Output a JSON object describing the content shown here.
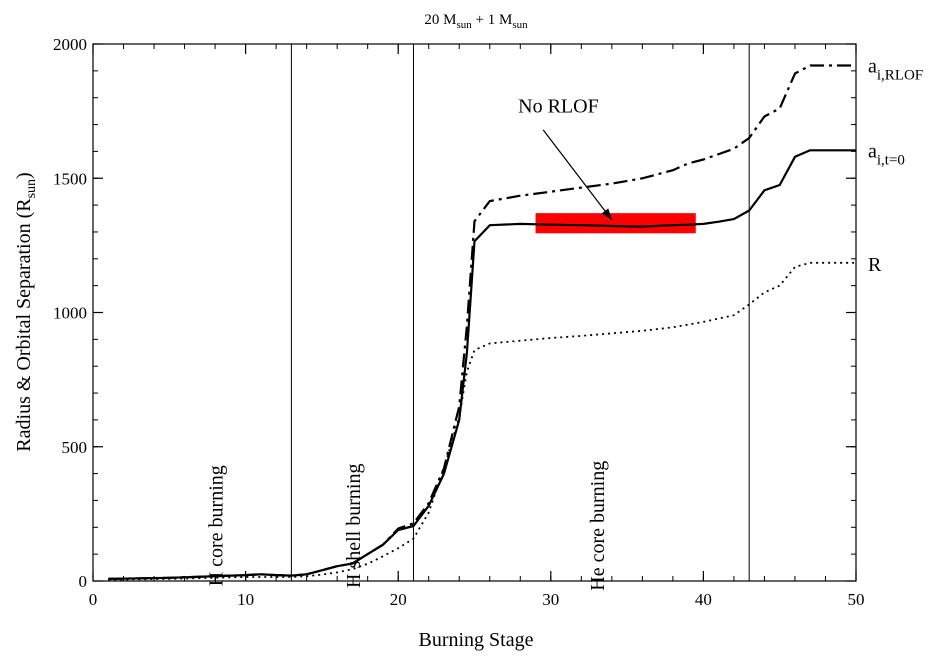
{
  "chart_data": {
    "type": "line",
    "title": {
      "main": "20 M",
      "sub1": "sun",
      "mid": " + 1 M",
      "sub2": "sun"
    },
    "xlabel": "Burning Stage",
    "ylabel": {
      "main": "Radius & Orbital Separation (R",
      "sub": "sun",
      "end": ")"
    },
    "xlim": [
      0,
      50
    ],
    "ylim": [
      0,
      2000
    ],
    "x_ticks": [
      0,
      10,
      20,
      30,
      40,
      50
    ],
    "y_ticks": [
      0,
      500,
      1000,
      1500,
      2000
    ],
    "x_minor_step": 2,
    "y_minor_step": 100,
    "grid": false,
    "vertical_lines": [
      13,
      21,
      43
    ],
    "stage_labels": [
      {
        "text": "H core burning",
        "x": 8.5,
        "y": 310
      },
      {
        "text": "H shell burning",
        "x": 17.5,
        "y": 310
      },
      {
        "text": "He core burning",
        "x": 33.5,
        "y": 310
      }
    ],
    "series": [
      {
        "label_main": "a",
        "label_sub": "i,RLOF",
        "label_y": 1920,
        "style": "dashdot",
        "x": [
          1,
          5,
          10,
          11,
          12,
          13,
          14,
          15,
          16,
          17,
          18,
          19,
          20,
          21,
          22,
          23,
          24,
          24.5,
          25,
          26,
          28,
          30,
          32,
          34,
          36,
          38,
          39,
          40,
          41,
          42,
          43,
          44,
          45,
          46,
          47,
          48,
          49,
          50
        ],
        "y": [
          8,
          12,
          22,
          25,
          22,
          20,
          25,
          40,
          55,
          65,
          100,
          135,
          195,
          215,
          290,
          420,
          650,
          950,
          1340,
          1415,
          1435,
          1450,
          1465,
          1480,
          1500,
          1530,
          1555,
          1570,
          1590,
          1610,
          1650,
          1730,
          1760,
          1890,
          1920,
          1920,
          1920,
          1920
        ]
      },
      {
        "label_main": "a",
        "label_sub": "i,t=0",
        "label_y": 1604,
        "style": "solid",
        "x": [
          1,
          5,
          10,
          11,
          12,
          13,
          14,
          15,
          16,
          17,
          18,
          19,
          20,
          21,
          22,
          23,
          24,
          24.5,
          25,
          26,
          28,
          30,
          32,
          34,
          36,
          38,
          39,
          40,
          41,
          42,
          43,
          44,
          45,
          46,
          47,
          48,
          49,
          50
        ],
        "y": [
          8,
          12,
          22,
          25,
          22,
          20,
          25,
          40,
          55,
          65,
          100,
          135,
          190,
          205,
          280,
          400,
          600,
          850,
          1265,
          1325,
          1330,
          1327,
          1325,
          1322,
          1320,
          1325,
          1327,
          1330,
          1338,
          1348,
          1380,
          1455,
          1475,
          1580,
          1604,
          1604,
          1604,
          1604
        ]
      },
      {
        "label_main": "R",
        "label_sub": "",
        "label_y": 1180,
        "style": "dotted",
        "x": [
          1,
          5,
          10,
          13,
          14,
          15,
          16,
          17,
          18,
          19,
          20,
          21,
          22,
          23,
          24,
          24.5,
          25,
          26,
          28,
          30,
          32,
          34,
          36,
          38,
          40,
          42,
          43,
          44,
          45,
          46,
          47,
          48,
          49,
          50
        ],
        "y": [
          5,
          8,
          15,
          15,
          18,
          24,
          32,
          44,
          64,
          92,
          122,
          158,
          255,
          420,
          610,
          780,
          860,
          885,
          895,
          905,
          913,
          922,
          932,
          945,
          965,
          990,
          1030,
          1075,
          1100,
          1170,
          1185,
          1185,
          1185,
          1185
        ]
      }
    ],
    "highlight": {
      "x_range": [
        29,
        39.5
      ],
      "y_range": [
        1295,
        1370
      ],
      "color": "#ff0000"
    },
    "annotation": {
      "text": "No RLOF",
      "text_x": 30.5,
      "text_y": 1745,
      "arrow_from": [
        29.5,
        1680
      ],
      "arrow_to": [
        34,
        1345
      ]
    }
  }
}
